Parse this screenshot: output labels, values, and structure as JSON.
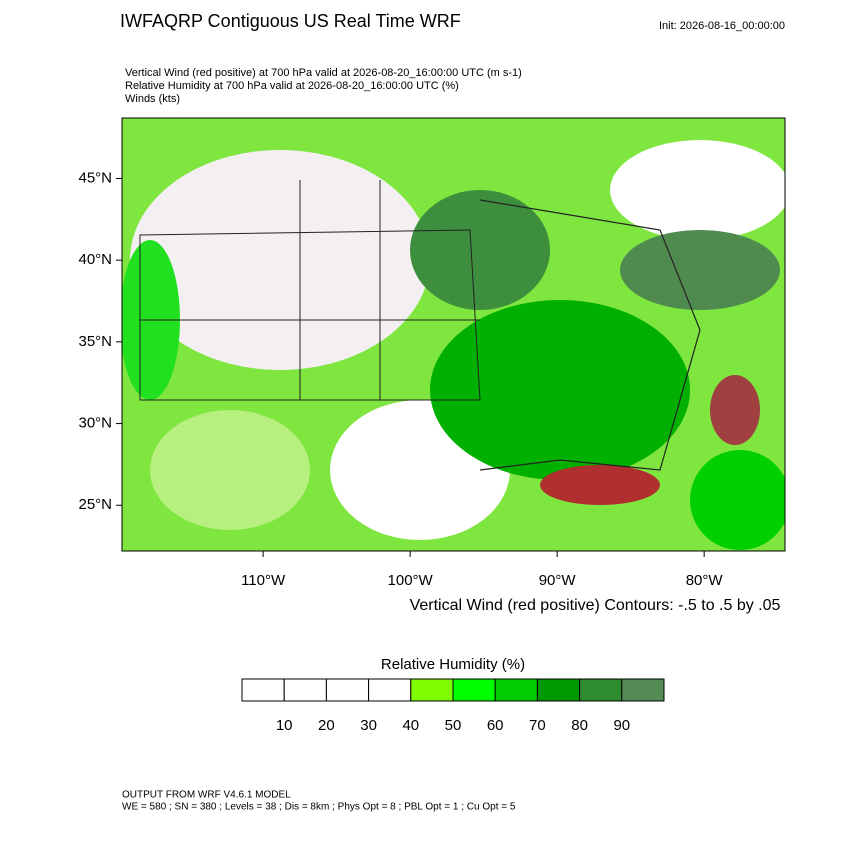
{
  "header": {
    "title": "IWFAQRP Contiguous US Real Time WRF",
    "init": "Init: 2026-08-16_00:00:00",
    "fields": [
      "Vertical Wind (red positive) at 700 hPa valid at 2026-08-20_16:00:00 UTC   (m s-1)",
      "Relative Humidity at 700 hPa valid at 2026-08-20_16:00:00 UTC   (%)",
      "Winds   (kts)"
    ]
  },
  "map": {
    "lat_range": [
      22.2,
      48.7
    ],
    "lon_range": [
      -119.6,
      -74.5
    ],
    "lat_ticks": [
      {
        "value": 25,
        "label": "25°N"
      },
      {
        "value": 30,
        "label": "30°N"
      },
      {
        "value": 35,
        "label": "35°N"
      },
      {
        "value": 40,
        "label": "40°N"
      },
      {
        "value": 45,
        "label": "45°N"
      }
    ],
    "lon_ticks": [
      {
        "value": -110,
        "label": "110°W"
      },
      {
        "value": -100,
        "label": "100°W"
      },
      {
        "value": -90,
        "label": "90°W"
      },
      {
        "value": -80,
        "label": "80°W"
      }
    ],
    "contour_note": "Vertical Wind (red positive) Contours: -.5 to .5 by .05"
  },
  "colorbar": {
    "title": "Relative Humidity  (%)",
    "colors": [
      "#ffffff",
      "#ffffff",
      "#ffffff",
      "#ffffff",
      "#80ff00",
      "#00ff00",
      "#00cc00",
      "#009900",
      "#2e8b2e",
      "#558b55"
    ],
    "levels": [
      10,
      20,
      30,
      40,
      50,
      60,
      70,
      80,
      90
    ]
  },
  "footer": {
    "model": "OUTPUT FROM WRF V4.6.1 MODEL",
    "settings": "WE = 580 ; SN = 380 ; Levels = 38 ; Dis = 8km ; Phys Opt = 8 ; PBL Opt = 1 ; Cu Opt = 5"
  }
}
